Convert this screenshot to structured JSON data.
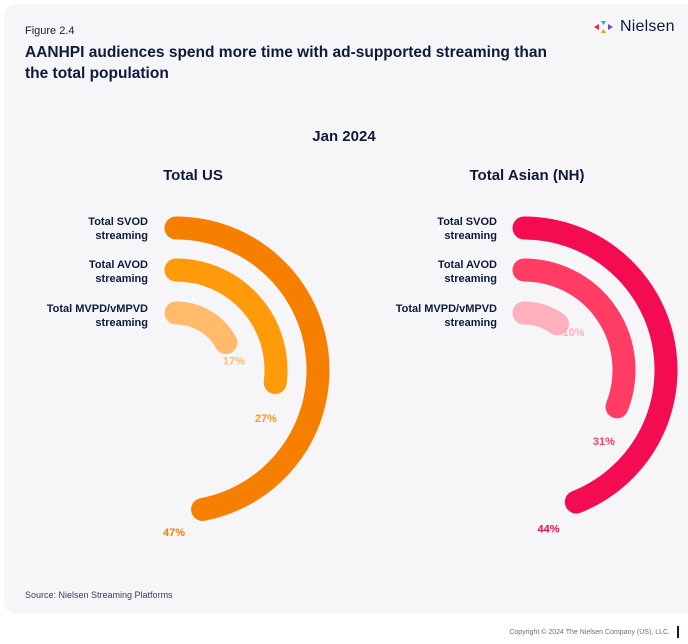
{
  "figure_label": "Figure 2.4",
  "title": "AANHPI audiences spend more time with ad-supported streaming than the total population",
  "brand": {
    "name": "Nielsen",
    "logo_colors": [
      "#e5263f",
      "#1fb8a6",
      "#f7941d",
      "#7b3fe4"
    ]
  },
  "source": "Source: Nielsen Streaming Platforms",
  "copyright": "Copyright © 2024 The Nielsen Company (US), LLC.",
  "chart_data": [
    {
      "type": "radial-bar",
      "period": "Jan 2024",
      "title": "Total US",
      "categories": [
        "Total SVOD streaming",
        "Total AVOD streaming",
        "Total MVPD/vMPVD streaming"
      ],
      "category_lines": [
        [
          "Total SVOD",
          "streaming"
        ],
        [
          "Total AVOD",
          "streaming"
        ],
        [
          "Total MVPD/vMPVD",
          "streaming"
        ]
      ],
      "values": [
        47,
        27,
        17
      ],
      "labels": [
        "47%",
        "27%",
        "17%"
      ],
      "unit": "%",
      "scale_max": 100,
      "colors": [
        "#f77f00",
        "#ff9a0b",
        "#ffbb6a"
      ]
    },
    {
      "type": "radial-bar",
      "period": "Jan 2024",
      "title": "Total Asian (NH)",
      "categories": [
        "Total SVOD streaming",
        "Total AVOD streaming",
        "Total MVPD/vMPVD streaming"
      ],
      "category_lines": [
        [
          "Total SVOD",
          "streaming"
        ],
        [
          "Total AVOD",
          "streaming"
        ],
        [
          "Total MVPD/vMPVD",
          "streaming"
        ]
      ],
      "values": [
        44,
        31,
        10
      ],
      "labels": [
        "44%",
        "31%",
        "10%"
      ],
      "unit": "%",
      "scale_max": 100,
      "colors": [
        "#f40c52",
        "#ff3d64",
        "#ffb0bc"
      ]
    }
  ]
}
